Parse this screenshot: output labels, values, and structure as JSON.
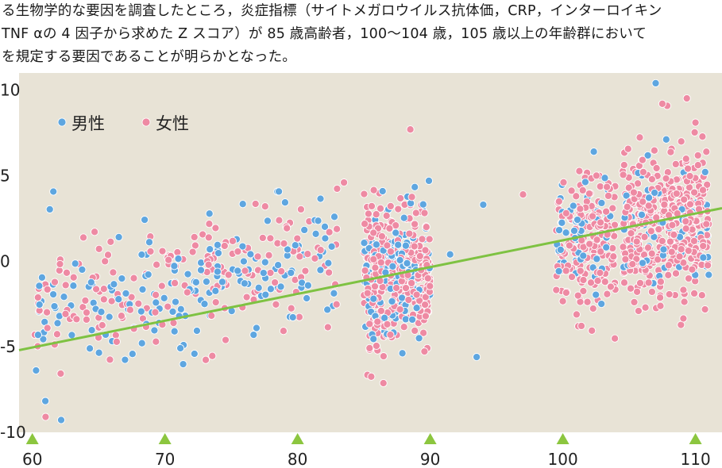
{
  "text": {
    "line1": "る生物学的な要因を調査したところ，炎症指標（サイトメガロウイルス抗体価，CRP，インターロイキン",
    "line2": "TNF αの 4 因子から求めた Z スコア）が 85 歳高齢者，100〜104 歳，105 歳以上の年齢群において",
    "line3": "を規定する要因であることが明らかとなった。"
  },
  "colors": {
    "plot_bg": "#e8e3d6",
    "male": "#5ea6e0",
    "female": "#ee8aa3",
    "trend": "#7ec242",
    "tick_marker": "#8cc63f",
    "axis_text": "#222222"
  },
  "chart_data": {
    "type": "scatter",
    "title": "",
    "xlabel": "",
    "ylabel": "",
    "xlim": [
      59,
      112
    ],
    "ylim": [
      -10,
      11
    ],
    "xticks": [
      60,
      70,
      80,
      90,
      100,
      110
    ],
    "yticks": [
      10,
      5,
      0,
      -5,
      -10
    ],
    "ytick_labels": [
      "10",
      "5",
      "0",
      "-5",
      "-10"
    ],
    "legend": {
      "placement": "top-left",
      "entries": [
        "男性",
        "女性"
      ]
    },
    "trendline": {
      "x": [
        59,
        112
      ],
      "y": [
        -5.2,
        3.1
      ]
    },
    "series": [
      {
        "name": "男性",
        "color": "#5ea6e0",
        "clusters": [
          {
            "x_range": [
              60,
              83
            ],
            "n": 170,
            "slope": 0.165,
            "intercept": -13.2,
            "sd": 2.0,
            "seed": 11
          },
          {
            "x_range": [
              85,
              90
            ],
            "n": 150,
            "slope": 0.0,
            "intercept": -0.6,
            "sd": 1.9,
            "seed": 23
          },
          {
            "x_range": [
              99.5,
              104
            ],
            "n": 50,
            "slope": 0.0,
            "intercept": 1.4,
            "sd": 1.9,
            "seed": 37
          },
          {
            "x_range": [
              104.5,
              111
            ],
            "n": 70,
            "slope": 0.0,
            "intercept": 2.0,
            "sd": 2.0,
            "seed": 41
          }
        ],
        "extra_points": [
          [
            107,
            10.4
          ],
          [
            93.5,
            -5.6
          ],
          [
            89.9,
            4.7
          ],
          [
            111,
            -0.8
          ],
          [
            91.5,
            0.4
          ],
          [
            94,
            3.3
          ]
        ]
      },
      {
        "name": "女性",
        "color": "#ee8aa3",
        "clusters": [
          {
            "x_range": [
              60,
              83
            ],
            "n": 180,
            "slope": 0.165,
            "intercept": -13.0,
            "sd": 1.9,
            "seed": 53
          },
          {
            "x_range": [
              85,
              90
            ],
            "n": 320,
            "slope": 0.0,
            "intercept": -0.9,
            "sd": 1.8,
            "seed": 67
          },
          {
            "x_range": [
              99.5,
              104
            ],
            "n": 180,
            "slope": 0.0,
            "intercept": 1.0,
            "sd": 1.9,
            "seed": 71
          },
          {
            "x_range": [
              104.5,
              111
            ],
            "n": 420,
            "slope": 0.0,
            "intercept": 2.1,
            "sd": 2.0,
            "seed": 89
          }
        ],
        "extra_points": [
          [
            61,
            -9.1
          ],
          [
            88.5,
            7.7
          ],
          [
            107.5,
            9.2
          ],
          [
            110,
            8.1
          ],
          [
            83.5,
            4.6
          ],
          [
            97,
            3.9
          ]
        ]
      }
    ]
  }
}
